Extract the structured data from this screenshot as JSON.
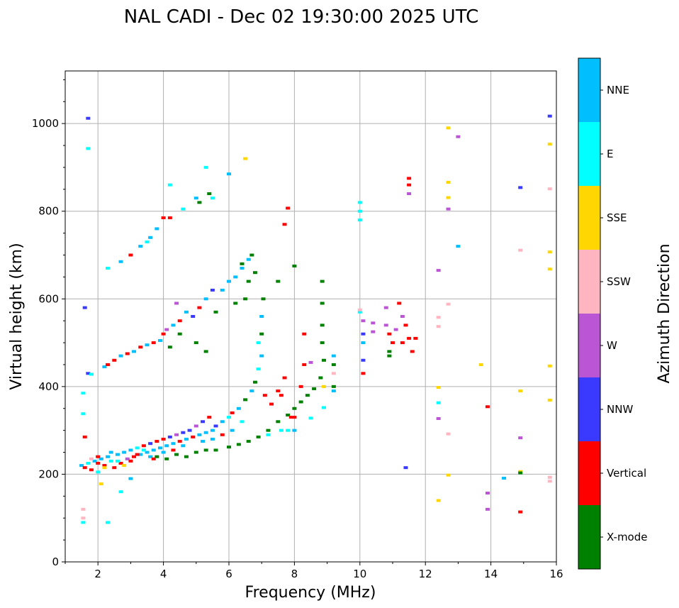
{
  "chart_data": {
    "type": "scatter",
    "title": "NAL CADI - Dec 02 19:30:00 2025 UTC",
    "xlabel": "Frequency (MHz)",
    "ylabel": "Virtual height (km)",
    "xlim": [
      1,
      16
    ],
    "ylim": [
      0,
      1120
    ],
    "xticks": [
      2,
      4,
      6,
      8,
      10,
      12,
      14,
      16
    ],
    "yticks": [
      0,
      200,
      400,
      600,
      800,
      1000
    ],
    "grid": true,
    "colorbar": {
      "label": "Azimuth Direction",
      "categories": [
        {
          "name": "X-mode",
          "color": "#008000"
        },
        {
          "name": "Vertical",
          "color": "#ff0000"
        },
        {
          "name": "NNW",
          "color": "#3a3aff"
        },
        {
          "name": "W",
          "color": "#ba55d3"
        },
        {
          "name": "SSW",
          "color": "#ffb6c1"
        },
        {
          "name": "SSE",
          "color": "#ffd700"
        },
        {
          "name": "E",
          "color": "#00ffff"
        },
        {
          "name": "NNE",
          "color": "#00bfff"
        }
      ]
    },
    "point_format": [
      "frequency_mhz",
      "virtual_height_km",
      "direction_index"
    ],
    "points": [
      [
        1.5,
        220,
        7
      ],
      [
        1.6,
        215,
        1
      ],
      [
        1.7,
        225,
        6
      ],
      [
        1.8,
        210,
        1
      ],
      [
        1.9,
        230,
        7
      ],
      [
        2.0,
        225,
        1
      ],
      [
        2.1,
        235,
        7
      ],
      [
        2.2,
        220,
        1
      ],
      [
        2.3,
        240,
        7
      ],
      [
        2.4,
        230,
        6
      ],
      [
        2.5,
        215,
        1
      ],
      [
        2.6,
        245,
        7
      ],
      [
        2.7,
        225,
        1
      ],
      [
        2.8,
        250,
        7
      ],
      [
        2.9,
        235,
        3
      ],
      [
        3.0,
        255,
        7
      ],
      [
        3.1,
        240,
        1
      ],
      [
        3.2,
        260,
        6
      ],
      [
        3.3,
        245,
        7
      ],
      [
        3.4,
        265,
        1
      ],
      [
        3.5,
        250,
        7
      ],
      [
        3.6,
        270,
        2
      ],
      [
        3.7,
        255,
        7
      ],
      [
        3.8,
        275,
        1
      ],
      [
        3.9,
        260,
        7
      ],
      [
        4.0,
        280,
        1
      ],
      [
        4.1,
        265,
        7
      ],
      [
        4.2,
        285,
        2
      ],
      [
        4.3,
        270,
        7
      ],
      [
        4.4,
        290,
        3
      ],
      [
        4.5,
        275,
        1
      ],
      [
        4.6,
        295,
        2
      ],
      [
        4.7,
        280,
        7
      ],
      [
        4.8,
        300,
        2
      ],
      [
        4.9,
        285,
        1
      ],
      [
        5.0,
        310,
        3
      ],
      [
        5.1,
        290,
        7
      ],
      [
        5.2,
        320,
        2
      ],
      [
        5.3,
        295,
        7
      ],
      [
        5.4,
        330,
        1
      ],
      [
        5.5,
        300,
        7
      ],
      [
        5.6,
        310,
        2
      ],
      [
        5.8,
        320,
        7
      ],
      [
        6.0,
        330,
        6
      ],
      [
        6.1,
        340,
        1
      ],
      [
        6.3,
        350,
        7
      ],
      [
        6.5,
        370,
        0
      ],
      [
        6.7,
        390,
        7
      ],
      [
        6.8,
        410,
        0
      ],
      [
        6.9,
        440,
        6
      ],
      [
        7.0,
        470,
        7
      ],
      [
        7.0,
        520,
        0
      ],
      [
        7.0,
        560,
        7
      ],
      [
        7.05,
        600,
        0
      ],
      [
        6.9,
        500,
        6
      ],
      [
        7.1,
        380,
        1
      ],
      [
        7.3,
        360,
        1
      ],
      [
        7.5,
        390,
        1
      ],
      [
        7.7,
        420,
        1
      ],
      [
        7.8,
        300,
        6
      ],
      [
        8.0,
        330,
        1
      ],
      [
        2.0,
        240,
        1
      ],
      [
        2.4,
        250,
        7
      ],
      [
        2.6,
        230,
        6
      ],
      [
        3.0,
        230,
        1
      ],
      [
        3.2,
        245,
        1
      ],
      [
        3.4,
        255,
        6
      ],
      [
        3.6,
        240,
        7
      ],
      [
        1.8,
        235,
        4
      ],
      [
        2.2,
        215,
        5
      ],
      [
        2.8,
        220,
        5
      ],
      [
        3.7,
        235,
        1
      ],
      [
        4.0,
        250,
        7
      ],
      [
        4.3,
        255,
        1
      ],
      [
        4.6,
        265,
        7
      ],
      [
        5.2,
        275,
        7
      ],
      [
        5.5,
        280,
        7
      ],
      [
        5.8,
        290,
        1
      ],
      [
        6.1,
        300,
        7
      ],
      [
        6.4,
        320,
        6
      ],
      [
        3.8,
        240,
        0
      ],
      [
        4.1,
        235,
        0
      ],
      [
        4.4,
        245,
        0
      ],
      [
        4.7,
        240,
        0
      ],
      [
        5.0,
        250,
        0
      ],
      [
        5.3,
        255,
        0
      ],
      [
        5.6,
        255,
        0
      ],
      [
        6.0,
        262,
        0
      ],
      [
        6.3,
        268,
        0
      ],
      [
        6.6,
        275,
        0
      ],
      [
        6.9,
        285,
        0
      ],
      [
        7.2,
        300,
        0
      ],
      [
        7.5,
        320,
        0
      ],
      [
        7.8,
        335,
        0
      ],
      [
        8.0,
        350,
        0
      ],
      [
        8.2,
        365,
        0
      ],
      [
        8.4,
        380,
        0
      ],
      [
        8.6,
        395,
        0
      ],
      [
        8.8,
        420,
        0
      ],
      [
        8.9,
        460,
        0
      ],
      [
        8.85,
        500,
        0
      ],
      [
        8.85,
        540,
        0
      ],
      [
        8.85,
        590,
        0
      ],
      [
        8.85,
        640,
        0
      ],
      [
        9.2,
        400,
        0
      ],
      [
        9.2,
        450,
        0
      ],
      [
        6.2,
        590,
        0
      ],
      [
        6.5,
        600,
        0
      ],
      [
        6.6,
        640,
        0
      ],
      [
        6.7,
        700,
        0
      ],
      [
        6.4,
        680,
        0
      ],
      [
        6.8,
        660,
        0
      ],
      [
        7.5,
        640,
        0
      ],
      [
        8.0,
        675,
        0
      ],
      [
        5.3,
        480,
        0
      ],
      [
        5.0,
        500,
        0
      ],
      [
        4.5,
        520,
        0
      ],
      [
        4.2,
        490,
        0
      ],
      [
        5.6,
        570,
        0
      ],
      [
        5.1,
        820,
        0
      ],
      [
        5.4,
        840,
        0
      ],
      [
        2.2,
        445,
        7
      ],
      [
        2.3,
        450,
        1
      ],
      [
        2.5,
        460,
        1
      ],
      [
        2.7,
        470,
        7
      ],
      [
        2.9,
        475,
        1
      ],
      [
        3.1,
        480,
        7
      ],
      [
        3.3,
        490,
        1
      ],
      [
        3.5,
        495,
        7
      ],
      [
        3.7,
        500,
        1
      ],
      [
        3.9,
        505,
        7
      ],
      [
        4.0,
        520,
        1
      ],
      [
        4.1,
        530,
        3
      ],
      [
        4.3,
        540,
        7
      ],
      [
        4.5,
        550,
        1
      ],
      [
        4.7,
        570,
        7
      ],
      [
        4.9,
        560,
        2
      ],
      [
        5.1,
        580,
        1
      ],
      [
        5.3,
        600,
        7
      ],
      [
        5.5,
        620,
        2
      ],
      [
        5.8,
        620,
        7
      ],
      [
        6.0,
        640,
        7
      ],
      [
        6.2,
        650,
        7
      ],
      [
        6.4,
        670,
        7
      ],
      [
        6.6,
        690,
        7
      ],
      [
        4.4,
        590,
        3
      ],
      [
        2.7,
        685,
        7
      ],
      [
        3.0,
        700,
        1
      ],
      [
        3.3,
        720,
        7
      ],
      [
        3.6,
        740,
        7
      ],
      [
        3.8,
        760,
        7
      ],
      [
        4.0,
        785,
        1
      ],
      [
        4.2,
        785,
        1
      ],
      [
        4.6,
        805,
        6
      ],
      [
        5.0,
        830,
        7
      ],
      [
        5.3,
        900,
        6
      ],
      [
        5.5,
        830,
        6
      ],
      [
        4.2,
        860,
        6
      ],
      [
        6.0,
        885,
        7
      ],
      [
        2.3,
        670,
        6
      ],
      [
        3.5,
        730,
        6
      ],
      [
        10.0,
        570,
        6
      ],
      [
        10.1,
        550,
        3
      ],
      [
        10.1,
        520,
        2
      ],
      [
        10.1,
        500,
        7
      ],
      [
        10.1,
        460,
        2
      ],
      [
        10.1,
        430,
        1
      ],
      [
        10.4,
        545,
        3
      ],
      [
        10.4,
        525,
        3
      ],
      [
        10.8,
        580,
        3
      ],
      [
        10.8,
        540,
        3
      ],
      [
        10.9,
        520,
        1
      ],
      [
        10.9,
        480,
        0
      ],
      [
        10.9,
        470,
        0
      ],
      [
        11.0,
        500,
        1
      ],
      [
        11.2,
        590,
        1
      ],
      [
        11.3,
        560,
        3
      ],
      [
        11.4,
        540,
        1
      ],
      [
        11.5,
        510,
        1
      ],
      [
        11.6,
        480,
        1
      ],
      [
        11.7,
        510,
        1
      ],
      [
        11.3,
        500,
        1
      ],
      [
        11.1,
        530,
        3
      ],
      [
        10.0,
        820,
        6
      ],
      [
        10.0,
        800,
        6
      ],
      [
        10.0,
        780,
        6
      ],
      [
        10.0,
        575,
        4
      ],
      [
        11.5,
        875,
        1
      ],
      [
        11.5,
        860,
        1
      ],
      [
        11.5,
        840,
        3
      ],
      [
        12.4,
        665,
        3
      ],
      [
        12.4,
        558,
        4
      ],
      [
        12.4,
        537,
        4
      ],
      [
        12.4,
        398,
        5
      ],
      [
        12.4,
        363,
        6
      ],
      [
        12.4,
        327,
        3
      ],
      [
        12.4,
        140,
        5
      ],
      [
        12.7,
        990,
        5
      ],
      [
        12.7,
        866,
        5
      ],
      [
        12.7,
        831,
        5
      ],
      [
        12.7,
        805,
        3
      ],
      [
        12.7,
        588,
        4
      ],
      [
        12.7,
        292,
        4
      ],
      [
        12.7,
        198,
        5
      ],
      [
        13.0,
        970,
        3
      ],
      [
        13.0,
        720,
        7
      ],
      [
        13.7,
        450,
        5
      ],
      [
        13.9,
        354,
        1
      ],
      [
        13.9,
        157,
        3
      ],
      [
        13.9,
        120,
        3
      ],
      [
        14.4,
        191,
        7
      ],
      [
        14.9,
        854,
        2
      ],
      [
        14.9,
        711,
        4
      ],
      [
        14.9,
        390,
        5
      ],
      [
        14.9,
        283,
        3
      ],
      [
        14.9,
        206,
        5
      ],
      [
        14.9,
        203,
        0
      ],
      [
        14.9,
        114,
        1
      ],
      [
        15.8,
        1017,
        2
      ],
      [
        15.8,
        953,
        5
      ],
      [
        15.8,
        851,
        4
      ],
      [
        15.8,
        707,
        5
      ],
      [
        15.8,
        668,
        5
      ],
      [
        15.8,
        447,
        5
      ],
      [
        15.8,
        369,
        5
      ],
      [
        15.8,
        193,
        4
      ],
      [
        15.8,
        184,
        4
      ],
      [
        11.4,
        215,
        2
      ],
      [
        1.6,
        580,
        2
      ],
      [
        1.7,
        1012,
        2
      ],
      [
        1.7,
        943,
        6
      ],
      [
        1.7,
        430,
        2
      ],
      [
        1.8,
        428,
        6
      ],
      [
        1.55,
        385,
        6
      ],
      [
        1.55,
        338,
        6
      ],
      [
        1.6,
        285,
        1
      ],
      [
        1.55,
        120,
        4
      ],
      [
        1.55,
        100,
        4
      ],
      [
        1.55,
        90,
        6
      ],
      [
        2.1,
        178,
        5
      ],
      [
        2.3,
        90,
        6
      ],
      [
        2.7,
        160,
        6
      ],
      [
        3.0,
        190,
        7
      ],
      [
        2.0,
        205,
        6
      ],
      [
        7.7,
        770,
        1
      ],
      [
        7.8,
        807,
        1
      ],
      [
        6.5,
        920,
        5
      ],
      [
        8.3,
        520,
        1
      ],
      [
        8.9,
        352,
        6
      ],
      [
        8.5,
        328,
        6
      ],
      [
        8.5,
        455,
        3
      ],
      [
        9.2,
        470,
        7
      ],
      [
        9.2,
        390,
        7
      ],
      [
        8.9,
        400,
        5
      ],
      [
        9.2,
        430,
        4
      ],
      [
        8.2,
        400,
        1
      ],
      [
        8.3,
        450,
        1
      ],
      [
        7.6,
        380,
        1
      ],
      [
        7.9,
        330,
        1
      ],
      [
        8.0,
        300,
        7
      ],
      [
        7.6,
        300,
        6
      ],
      [
        7.2,
        290,
        6
      ]
    ]
  }
}
